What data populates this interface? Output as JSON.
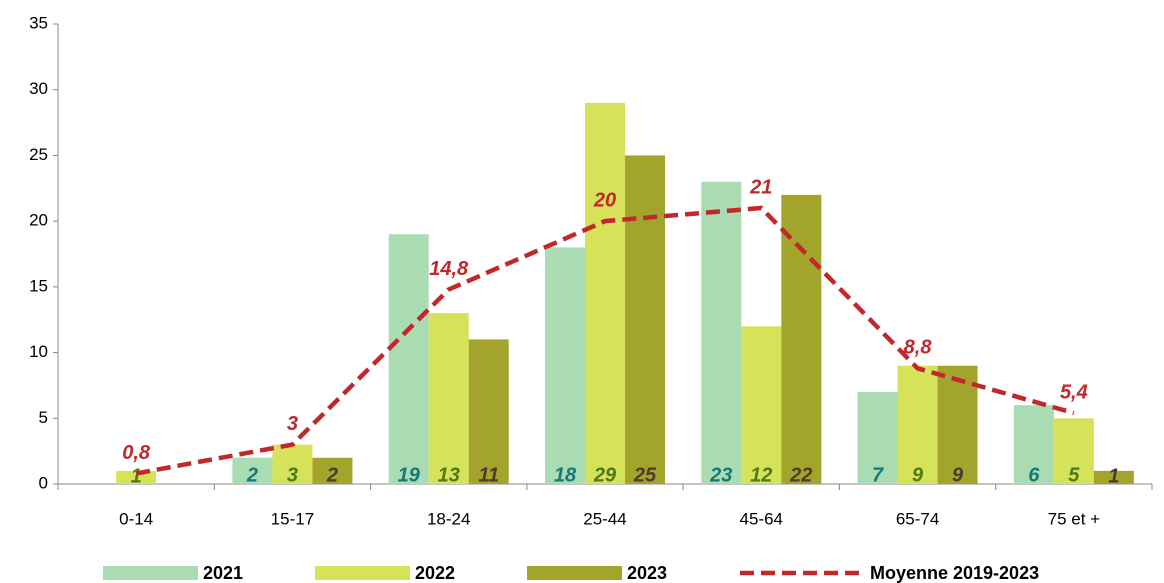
{
  "chart_data": {
    "type": "bar",
    "categories": [
      "0-14",
      "15-17",
      "18-24",
      "25-44",
      "45-64",
      "65-74",
      "75 et +"
    ],
    "series": [
      {
        "name": "2021",
        "color": "#a9dcb2",
        "label_color": "#17787a",
        "values": [
          null,
          2,
          19,
          18,
          23,
          7,
          6
        ]
      },
      {
        "name": "2022",
        "color": "#d5e25a",
        "label_color": "#4b7a16",
        "values": [
          1,
          3,
          13,
          29,
          12,
          9,
          5
        ]
      },
      {
        "name": "2023",
        "color": "#a2a42c",
        "label_color": "#4c3b2a",
        "values": [
          null,
          2,
          11,
          25,
          22,
          9,
          1
        ]
      },
      {
        "name": "Moyenne 2019-2023",
        "type": "line",
        "color": "#c0282b",
        "label_color": "#c0282b",
        "values": [
          0.8,
          3,
          14.8,
          20,
          21,
          8.8,
          5.4
        ],
        "value_labels": [
          "0,8",
          "3",
          "14,8",
          "20",
          "21",
          "8,8",
          "5,4"
        ]
      }
    ],
    "ylim": [
      0,
      35
    ],
    "yticks": [
      0,
      5,
      10,
      15,
      20,
      25,
      30,
      35
    ],
    "grid": false,
    "legend": "bottom"
  }
}
